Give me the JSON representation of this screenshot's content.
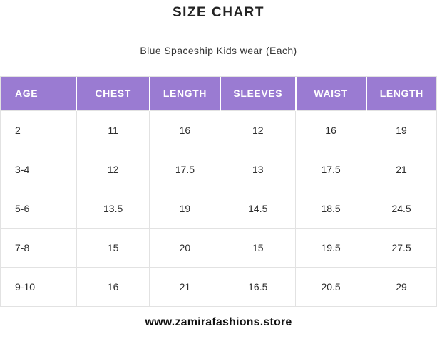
{
  "chart_data": {
    "type": "table",
    "title": "SIZE CHART",
    "subtitle": "Blue Spaceship Kids wear (Each)",
    "columns": [
      "AGE",
      "CHEST",
      "LENGTH",
      "SLEEVES",
      "WAIST",
      "LENGTH"
    ],
    "rows": [
      [
        "2",
        "11",
        "16",
        "12",
        "16",
        "19"
      ],
      [
        "3-4",
        "12",
        "17.5",
        "13",
        "17.5",
        "21"
      ],
      [
        "5-6",
        "13.5",
        "19",
        "14.5",
        "18.5",
        "24.5"
      ],
      [
        "7-8",
        "15",
        "20",
        "15",
        "19.5",
        "27.5"
      ],
      [
        "9-10",
        "16",
        "21",
        "16.5",
        "20.5",
        "29"
      ]
    ],
    "footer_url": "www.zamirafashions.store"
  },
  "colors": {
    "header_bg": "#9a7bd2",
    "header_text": "#ffffff",
    "body_text": "#2d2d2d",
    "border": "#e2e2e2",
    "title_text": "#232323",
    "page_bg": "#ffffff"
  }
}
